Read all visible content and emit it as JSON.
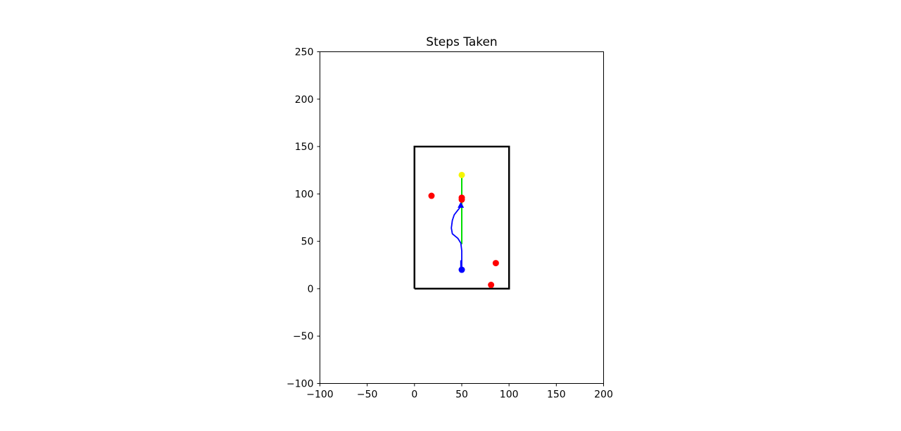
{
  "chart_data": {
    "type": "scatter",
    "title": "Steps Taken",
    "xlabel": "",
    "ylabel": "",
    "xlim": [
      -100,
      200
    ],
    "ylim": [
      -100,
      250
    ],
    "x_ticks": [
      -100,
      -50,
      0,
      50,
      100,
      150,
      200
    ],
    "y_ticks": [
      -100,
      -50,
      0,
      50,
      100,
      150,
      200,
      250
    ],
    "x_tick_labels": [
      "−100",
      "−50",
      "0",
      "50",
      "100",
      "150",
      "200"
    ],
    "y_tick_labels": [
      "−100",
      "−50",
      "0",
      "50",
      "100",
      "150",
      "200",
      "250"
    ],
    "grid": false,
    "boundary": {
      "color": "#000000",
      "points": [
        [
          0,
          0
        ],
        [
          100,
          0
        ],
        [
          100,
          150
        ],
        [
          0,
          150
        ],
        [
          0,
          0
        ]
      ]
    },
    "target_path": {
      "color": "#00dd00",
      "points": [
        [
          50,
          47
        ],
        [
          50,
          120
        ]
      ]
    },
    "goal": {
      "x": 50,
      "y": 120,
      "color": "#f5f500"
    },
    "start": {
      "x": 50,
      "y": 20,
      "color": "#0000ff"
    },
    "robot_path": {
      "color": "#0000ff",
      "points": [
        [
          49,
          30
        ],
        [
          49,
          22
        ],
        [
          50,
          20
        ],
        [
          50,
          28
        ],
        [
          50,
          40
        ],
        [
          49,
          48
        ],
        [
          46,
          53
        ],
        [
          40,
          58
        ],
        [
          39,
          64
        ],
        [
          40,
          72
        ],
        [
          42,
          78
        ],
        [
          46,
          83
        ],
        [
          49,
          87
        ]
      ]
    },
    "robot_heading": {
      "x": 49,
      "y": 88,
      "color": "#0000ff"
    },
    "obstacles": {
      "color": "#ff0000",
      "points": [
        [
          18,
          98
        ],
        [
          50,
          96
        ],
        [
          50,
          94
        ],
        [
          86,
          27
        ],
        [
          81,
          4
        ]
      ]
    }
  }
}
